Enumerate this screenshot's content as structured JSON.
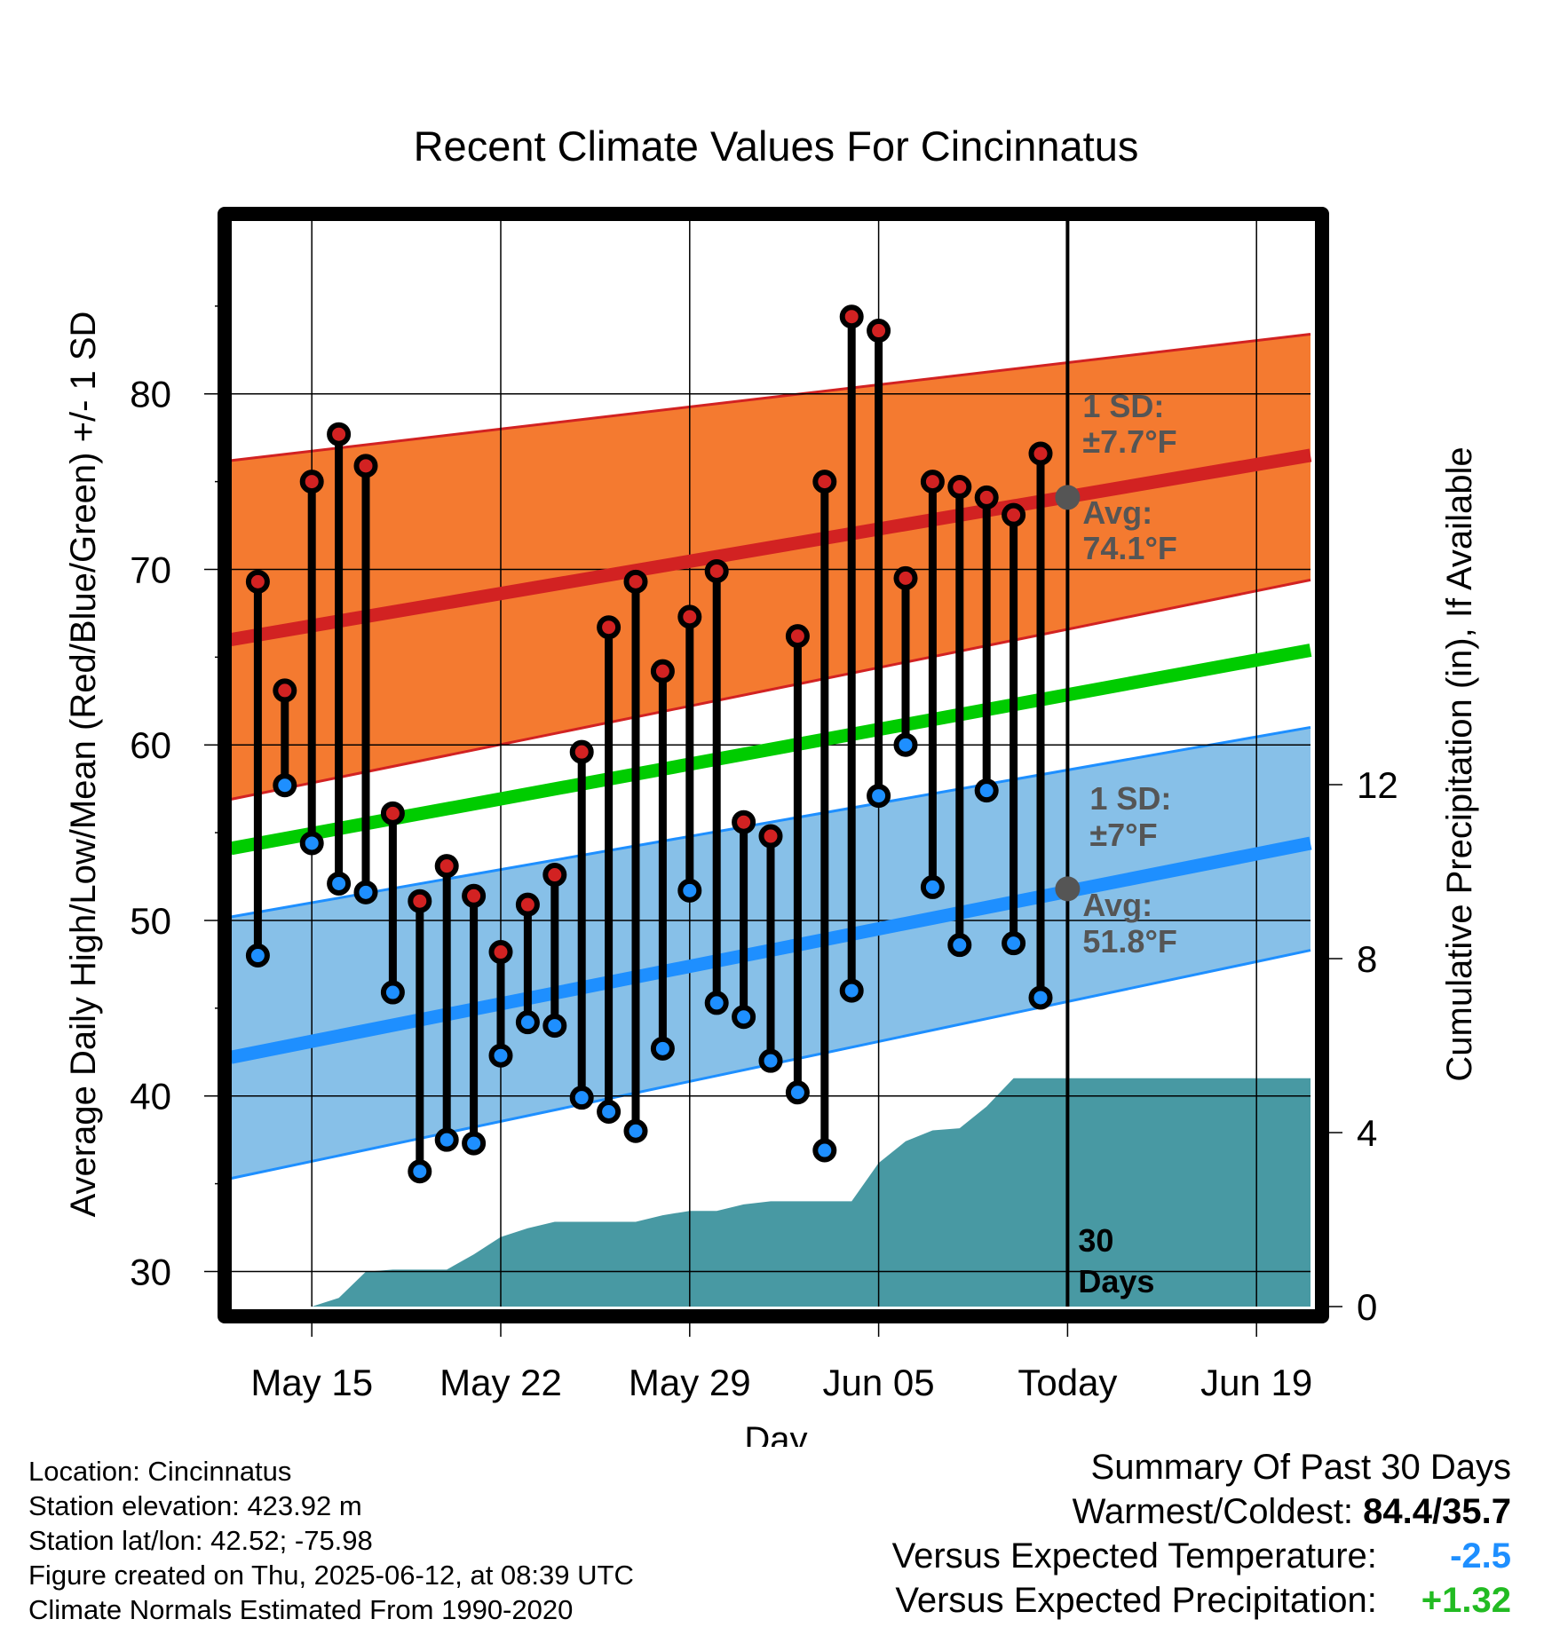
{
  "chart_data": {
    "type": "line",
    "title": "Recent Climate Values For Cincinnatus",
    "xlabel": "Day",
    "ylabel": "Average Daily High/Low/Mean (Red/Blue/Green) +/- 1 SD",
    "y2label": "Cumulative Precipitation (in), If Available",
    "ylim": [
      28,
      90
    ],
    "y2lim": [
      0,
      12
    ],
    "y_ticks": [
      30,
      40,
      50,
      60,
      70,
      80
    ],
    "y2_ticks": [
      0,
      4,
      8,
      12
    ],
    "xlim": [
      "2025-05-12",
      "2025-06-21"
    ],
    "x_ticks": [
      {
        "date": "2025-05-15",
        "label": "May 15"
      },
      {
        "date": "2025-05-22",
        "label": "May 22"
      },
      {
        "date": "2025-05-29",
        "label": "May 29"
      },
      {
        "date": "2025-06-05",
        "label": "Jun 05"
      },
      {
        "date": "2025-06-12",
        "label": "Today"
      },
      {
        "date": "2025-06-19",
        "label": "Jun 19"
      }
    ],
    "grid": true,
    "today": "2025-06-12",
    "today_label": "30\nDays",
    "normals": {
      "high_avg": {
        "start": 66.0,
        "end": 76.5,
        "color": "#d22222"
      },
      "high_band": {
        "start_low": 56.9,
        "start_high": 76.2,
        "end_low": 69.4,
        "end_high": 83.4,
        "color": "#f47a30"
      },
      "mean": {
        "start": 54.1,
        "end": 65.4,
        "color": "#00cc00"
      },
      "low_avg": {
        "start": 42.2,
        "end": 54.4,
        "color": "#1e8fff"
      },
      "low_band": {
        "start_low": 35.3,
        "start_high": 50.2,
        "end_low": 48.3,
        "end_high": 61.0,
        "color": "#87c0e8"
      }
    },
    "annotations": {
      "high_sd_title": "1 SD:",
      "high_sd_value": "±7.7°F",
      "high_avg_title": "Avg:",
      "high_avg_value": "74.1°F",
      "low_sd_title": "1 SD:",
      "low_sd_value": "±7°F",
      "low_avg_title": "Avg:",
      "low_avg_value": "51.8°F"
    },
    "today_avg_high": 74.1,
    "today_avg_low": 51.8,
    "series": [
      {
        "name": "High",
        "color": "#d22222",
        "points": [
          [
            "2025-05-13",
            69.3
          ],
          [
            "2025-05-14",
            63.1
          ],
          [
            "2025-05-15",
            75.0
          ],
          [
            "2025-05-16",
            77.7
          ],
          [
            "2025-05-17",
            75.9
          ],
          [
            "2025-05-18",
            56.1
          ],
          [
            "2025-05-19",
            51.1
          ],
          [
            "2025-05-20",
            53.1
          ],
          [
            "2025-05-21",
            51.4
          ],
          [
            "2025-05-22",
            48.2
          ],
          [
            "2025-05-23",
            50.9
          ],
          [
            "2025-05-24",
            52.6
          ],
          [
            "2025-05-25",
            59.6
          ],
          [
            "2025-05-26",
            66.7
          ],
          [
            "2025-05-27",
            69.3
          ],
          [
            "2025-05-28",
            64.2
          ],
          [
            "2025-05-29",
            67.3
          ],
          [
            "2025-05-30",
            69.9
          ],
          [
            "2025-05-31",
            55.6
          ],
          [
            "2025-06-01",
            54.8
          ],
          [
            "2025-06-02",
            66.2
          ],
          [
            "2025-06-03",
            75.0
          ],
          [
            "2025-06-04",
            84.4
          ],
          [
            "2025-06-05",
            83.6
          ],
          [
            "2025-06-06",
            69.5
          ],
          [
            "2025-06-07",
            75.0
          ],
          [
            "2025-06-08",
            74.7
          ],
          [
            "2025-06-09",
            74.1
          ],
          [
            "2025-06-10",
            73.1
          ],
          [
            "2025-06-11",
            76.6
          ]
        ]
      },
      {
        "name": "Low",
        "color": "#1e8fff",
        "points": [
          [
            "2025-05-13",
            48.0
          ],
          [
            "2025-05-14",
            57.7
          ],
          [
            "2025-05-15",
            54.4
          ],
          [
            "2025-05-16",
            52.1
          ],
          [
            "2025-05-17",
            51.6
          ],
          [
            "2025-05-18",
            45.9
          ],
          [
            "2025-05-19",
            35.7
          ],
          [
            "2025-05-20",
            37.5
          ],
          [
            "2025-05-21",
            37.3
          ],
          [
            "2025-05-22",
            42.3
          ],
          [
            "2025-05-23",
            44.2
          ],
          [
            "2025-05-24",
            44.0
          ],
          [
            "2025-05-25",
            39.9
          ],
          [
            "2025-05-26",
            39.1
          ],
          [
            "2025-05-27",
            38.0
          ],
          [
            "2025-05-28",
            42.7
          ],
          [
            "2025-05-29",
            51.7
          ],
          [
            "2025-05-30",
            45.3
          ],
          [
            "2025-05-31",
            44.5
          ],
          [
            "2025-06-01",
            42.0
          ],
          [
            "2025-06-02",
            40.2
          ],
          [
            "2025-06-03",
            36.9
          ],
          [
            "2025-06-04",
            46.0
          ],
          [
            "2025-06-05",
            57.1
          ],
          [
            "2025-06-06",
            60.0
          ],
          [
            "2025-06-07",
            51.9
          ],
          [
            "2025-06-08",
            48.6
          ],
          [
            "2025-06-09",
            57.4
          ],
          [
            "2025-06-10",
            48.7
          ],
          [
            "2025-06-11",
            45.6
          ]
        ]
      },
      {
        "name": "Cumulative Precipitation",
        "color": "#4899a3",
        "points": [
          [
            "2025-05-12",
            0.0
          ],
          [
            "2025-05-15",
            0.0
          ],
          [
            "2025-05-16",
            0.2
          ],
          [
            "2025-05-17",
            0.8
          ],
          [
            "2025-05-18",
            0.85
          ],
          [
            "2025-05-19",
            0.85
          ],
          [
            "2025-05-20",
            0.85
          ],
          [
            "2025-05-21",
            1.2
          ],
          [
            "2025-05-22",
            1.6
          ],
          [
            "2025-05-23",
            1.8
          ],
          [
            "2025-05-24",
            1.95
          ],
          [
            "2025-05-25",
            1.95
          ],
          [
            "2025-05-26",
            1.95
          ],
          [
            "2025-05-27",
            1.95
          ],
          [
            "2025-05-28",
            2.1
          ],
          [
            "2025-05-29",
            2.2
          ],
          [
            "2025-05-30",
            2.2
          ],
          [
            "2025-05-31",
            2.35
          ],
          [
            "2025-06-01",
            2.42
          ],
          [
            "2025-06-02",
            2.42
          ],
          [
            "2025-06-03",
            2.42
          ],
          [
            "2025-06-04",
            2.42
          ],
          [
            "2025-06-05",
            3.3
          ],
          [
            "2025-06-06",
            3.8
          ],
          [
            "2025-06-07",
            4.05
          ],
          [
            "2025-06-08",
            4.1
          ],
          [
            "2025-06-09",
            4.6
          ],
          [
            "2025-06-10",
            5.25
          ],
          [
            "2025-06-11",
            5.25
          ],
          [
            "2025-06-12",
            5.25
          ],
          [
            "2025-06-21",
            5.25
          ]
        ]
      }
    ]
  },
  "meta": {
    "location": "Location: Cincinnatus",
    "elevation": "Station elevation: 423.92 m",
    "latlon": "Station lat/lon: 42.52; -75.98",
    "created": "Figure created on Thu, 2025-06-12, at 08:39 UTC",
    "normals": "Climate Normals Estimated From 1990-2020"
  },
  "summary": {
    "heading": "Summary Of Past 30 Days",
    "warmest_label": "Warmest/Coldest:",
    "warmest_value": "84.4/35.7",
    "temp_label": "Versus Expected Temperature:",
    "temp_value": "-2.5",
    "temp_color": "#1e8fff",
    "precip_label": "Versus Expected Precipitation:",
    "precip_value": "+1.32",
    "precip_color": "#22bb22"
  }
}
